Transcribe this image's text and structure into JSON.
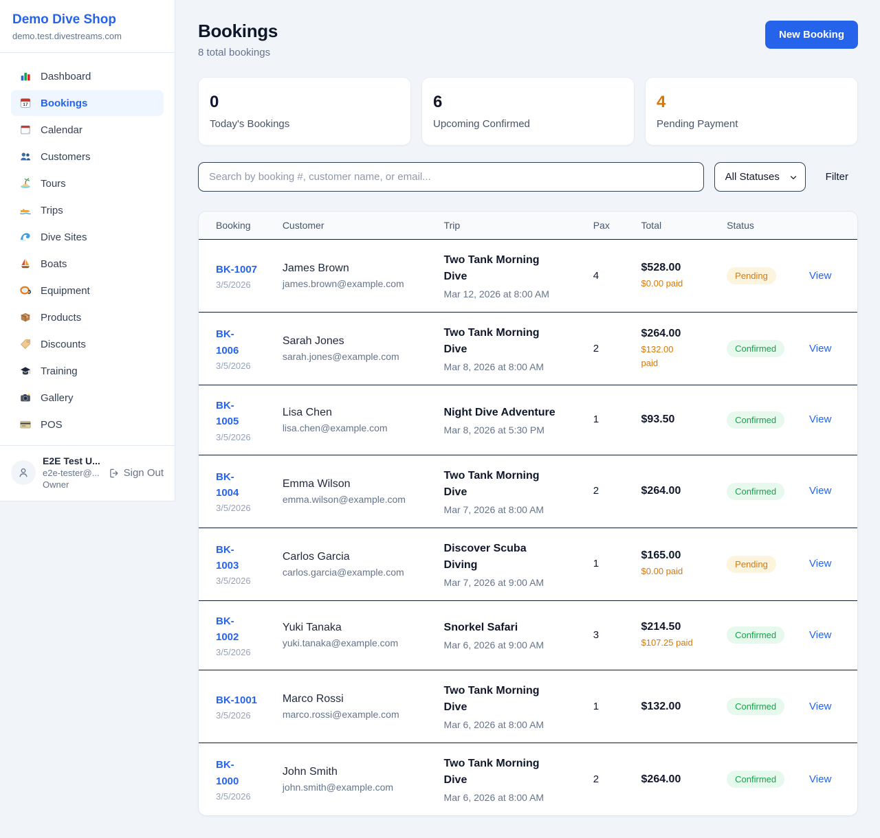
{
  "colors": {
    "accent": "#2563eb",
    "dark": "#0f172a",
    "gray": "#64748b",
    "orange": "#d97706",
    "green": "#16a34a",
    "pending_bg": "#fdf4de",
    "confirmed_bg": "#e7f8ed",
    "page_bg": "#f1f5f9",
    "card_border": "#e2e8f0",
    "divider": "#10192c",
    "active_bg": "#eff6ff"
  },
  "sidebar": {
    "brand": {
      "name": "Demo Dive Shop",
      "domain": "demo.test.divestreams.com"
    },
    "items": [
      {
        "label": "Dashboard",
        "icon": "bar-chart",
        "active": false
      },
      {
        "label": "Bookings",
        "icon": "calendar-date",
        "active": true
      },
      {
        "label": "Calendar",
        "icon": "calendar",
        "active": false
      },
      {
        "label": "Customers",
        "icon": "people",
        "active": false
      },
      {
        "label": "Tours",
        "icon": "island",
        "active": false
      },
      {
        "label": "Trips",
        "icon": "speedboat",
        "active": false
      },
      {
        "label": "Dive Sites",
        "icon": "wave",
        "active": false
      },
      {
        "label": "Boats",
        "icon": "sailboat",
        "active": false
      },
      {
        "label": "Equipment",
        "icon": "diving-mask",
        "active": false
      },
      {
        "label": "Products",
        "icon": "package",
        "active": false
      },
      {
        "label": "Discounts",
        "icon": "tag",
        "active": false
      },
      {
        "label": "Training",
        "icon": "graduation-cap",
        "active": false
      },
      {
        "label": "Gallery",
        "icon": "camera",
        "active": false
      },
      {
        "label": "POS",
        "icon": "credit-card",
        "active": false
      }
    ],
    "user": {
      "name": "E2E Test U...",
      "email": "e2e-tester@...",
      "role": "Owner",
      "sign_out_label": "Sign Out"
    }
  },
  "header": {
    "title": "Bookings",
    "subtitle": "8 total bookings",
    "new_booking_label": "New Booking"
  },
  "stats": [
    {
      "value": "0",
      "label": "Today's Bookings",
      "value_color": "#0f172a"
    },
    {
      "value": "6",
      "label": "Upcoming Confirmed",
      "value_color": "#0f172a"
    },
    {
      "value": "4",
      "label": "Pending Payment",
      "value_color": "#d97706"
    }
  ],
  "filters": {
    "search_placeholder": "Search by booking #, customer name, or email...",
    "status_selected": "All Statuses",
    "filter_label": "Filter"
  },
  "table": {
    "columns": [
      "Booking",
      "Customer",
      "Trip",
      "Pax",
      "Total",
      "Status",
      ""
    ],
    "rows": [
      {
        "id": "BK-1007",
        "date": "3/5/2026",
        "customer": "James Brown",
        "email": "james.brown@example.com",
        "trip": "Two Tank Morning\nDive",
        "trip_datetime": "Mar 12, 2026 at 8:00 AM",
        "pax": "4",
        "total": "$528.00",
        "paid": "$0.00 paid",
        "status": "Pending",
        "view_label": "View"
      },
      {
        "id": "BK-\n1006",
        "date": "3/5/2026",
        "customer": "Sarah Jones",
        "email": "sarah.jones@example.com",
        "trip": "Two Tank Morning\nDive",
        "trip_datetime": "Mar 8, 2026 at 8:00 AM",
        "pax": "2",
        "total": "$264.00",
        "paid": "$132.00\npaid",
        "status": "Confirmed",
        "view_label": "View"
      },
      {
        "id": "BK-\n1005",
        "date": "3/5/2026",
        "customer": "Lisa Chen",
        "email": "lisa.chen@example.com",
        "trip": "Night Dive Adventure",
        "trip_datetime": "Mar 8, 2026 at 5:30 PM",
        "pax": "1",
        "total": "$93.50",
        "paid": "",
        "status": "Confirmed",
        "view_label": "View"
      },
      {
        "id": "BK-\n1004",
        "date": "3/5/2026",
        "customer": "Emma Wilson",
        "email": "emma.wilson@example.com",
        "trip": "Two Tank Morning\nDive",
        "trip_datetime": "Mar 7, 2026 at 8:00 AM",
        "pax": "2",
        "total": "$264.00",
        "paid": "",
        "status": "Confirmed",
        "view_label": "View"
      },
      {
        "id": "BK-\n1003",
        "date": "3/5/2026",
        "customer": "Carlos Garcia",
        "email": "carlos.garcia@example.com",
        "trip": "Discover Scuba\nDiving",
        "trip_datetime": "Mar 7, 2026 at 9:00 AM",
        "pax": "1",
        "total": "$165.00",
        "paid": "$0.00 paid",
        "status": "Pending",
        "view_label": "View"
      },
      {
        "id": "BK-\n1002",
        "date": "3/5/2026",
        "customer": "Yuki Tanaka",
        "email": "yuki.tanaka@example.com",
        "trip": "Snorkel Safari",
        "trip_datetime": "Mar 6, 2026 at 9:00 AM",
        "pax": "3",
        "total": "$214.50",
        "paid": "$107.25 paid",
        "status": "Confirmed",
        "view_label": "View"
      },
      {
        "id": "BK-1001",
        "date": "3/5/2026",
        "customer": "Marco Rossi",
        "email": "marco.rossi@example.com",
        "trip": "Two Tank Morning\nDive",
        "trip_datetime": "Mar 6, 2026 at 8:00 AM",
        "pax": "1",
        "total": "$132.00",
        "paid": "",
        "status": "Confirmed",
        "view_label": "View"
      },
      {
        "id": "BK-\n1000",
        "date": "3/5/2026",
        "customer": "John Smith",
        "email": "john.smith@example.com",
        "trip": "Two Tank Morning\nDive",
        "trip_datetime": "Mar 6, 2026 at 8:00 AM",
        "pax": "2",
        "total": "$264.00",
        "paid": "",
        "status": "Confirmed",
        "view_label": "View"
      }
    ]
  }
}
